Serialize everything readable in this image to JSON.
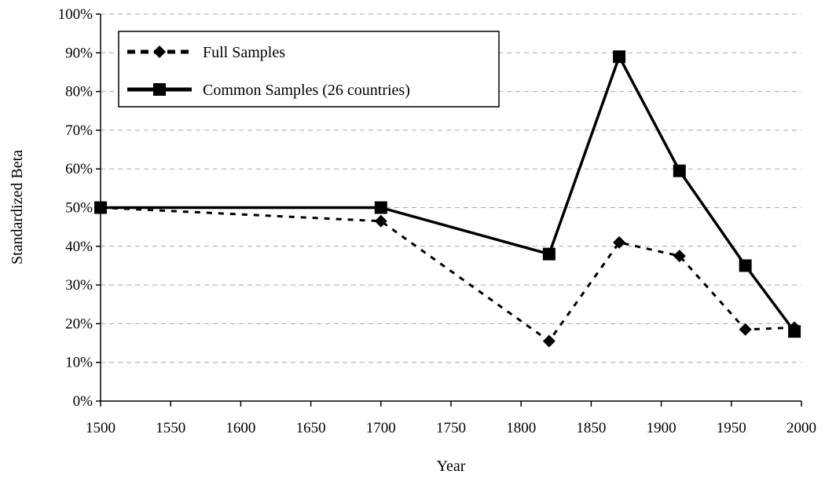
{
  "chart_data": {
    "type": "line",
    "xlabel": "Year",
    "ylabel": "Standardized Beta",
    "xlim": [
      1500,
      2000
    ],
    "ylim": [
      0,
      100
    ],
    "x_ticks": [
      "1500",
      "1550",
      "1600",
      "1650",
      "1700",
      "1750",
      "1800",
      "1850",
      "1900",
      "1950",
      "2000"
    ],
    "y_ticks": [
      "0%",
      "10%",
      "20%",
      "30%",
      "40%",
      "50%",
      "60%",
      "70%",
      "80%",
      "90%",
      "100%"
    ],
    "grid": "horizontal dashed",
    "legend_position": "top-left",
    "series": [
      {
        "name": "Full Samples",
        "style": "dashed",
        "marker": "diamond",
        "color": "#000000",
        "x": [
          1500,
          1700,
          1820,
          1870,
          1913,
          1960,
          1995
        ],
        "y": [
          50,
          46.5,
          15.5,
          41,
          37.5,
          18.5,
          19
        ]
      },
      {
        "name": "Common Samples (26 countries)",
        "style": "solid",
        "marker": "square",
        "color": "#000000",
        "x": [
          1500,
          1700,
          1820,
          1870,
          1913,
          1960,
          1995
        ],
        "y": [
          50,
          50,
          38,
          89,
          59.5,
          35,
          18
        ]
      }
    ]
  }
}
